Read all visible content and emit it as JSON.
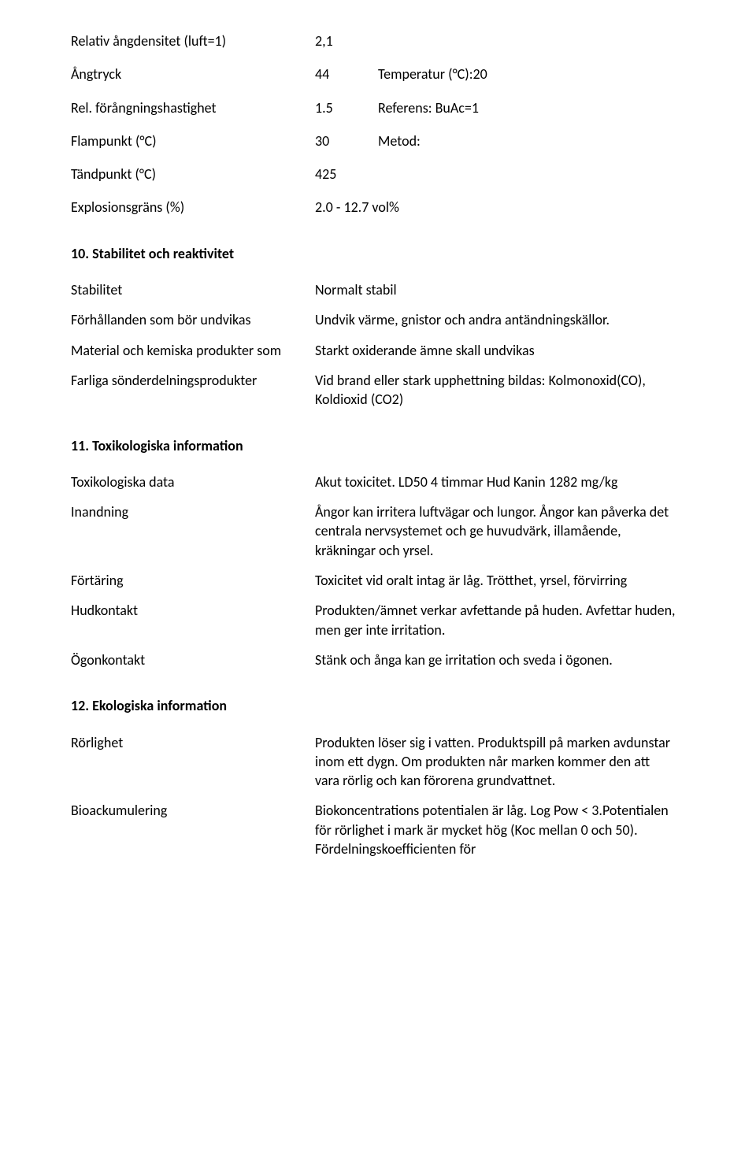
{
  "phys": {
    "density_label": "Relativ ångdensitet (luft=1)",
    "density_val": "2,1",
    "vapor_label": "Ångtryck",
    "vapor_val": "44",
    "vapor_extra": "Temperatur (°C):20",
    "evap_label": "Rel. förångningshastighet",
    "evap_val": "1.5",
    "evap_extra": " Referens: BuAc=1",
    "flash_label": "Flampunkt (°C)",
    "flash_val": "30",
    "flash_extra": "Metod:",
    "ignition_label": "Tändpunkt (°C)",
    "ignition_val": "425",
    "explosion_label": "Explosionsgräns (%)",
    "explosion_val": "2.0 - 12.7 vol%"
  },
  "s10": {
    "heading": "10. Stabilitet och reaktivitet",
    "r1_l": "Stabilitet",
    "r1_r": "Normalt stabil",
    "r2_l": "Förhållanden som bör undvikas",
    "r2_r": "Undvik värme, gnistor och andra antändningskällor.",
    "r3_l": "Material och kemiska produkter som",
    "r3_r": "Starkt oxiderande ämne skall  undvikas",
    "r4_l": "Farliga sönderdelningsprodukter",
    "r4_r": "Vid brand eller stark upphettning bildas: Kolmonoxid(CO), Koldioxid (CO2)"
  },
  "s11": {
    "heading": "11. Toxikologiska information",
    "r1_l": "Toxikologiska data",
    "r1_r": "Akut toxicitet. LD50 4 timmar Hud Kanin 1282 mg/kg",
    "r2_l": "Inandning",
    "r2_r": "Ångor kan irritera luftvägar och lungor. Ångor kan påverka det centrala nervsystemet och ge huvudvärk, illamående, kräkningar och yrsel.",
    "r3_l": "Förtäring",
    "r3_r": "Toxicitet vid oralt intag är låg. Trötthet, yrsel, förvirring",
    "r4_l": "Hudkontakt",
    "r4_r": "Produkten/ämnet verkar avfettande på huden. Avfettar huden, men ger inte irritation.",
    "r5_l": "Ögonkontakt",
    "r5_r": "Stänk och ånga kan ge irritation och sveda i ögonen."
  },
  "s12": {
    "heading": "12. Ekologiska information",
    "r1_l": "Rörlighet",
    "r1_r": "Produkten löser sig i vatten. Produktspill på marken avdunstar inom ett dygn. Om produkten når marken kommer den att vara rörlig och kan förorena grundvattnet.",
    "r2_l": "Bioackumulering",
    "r2_r": "Biokoncentrations potentialen är låg. Log Pow < 3.Potentialen för rörlighet i mark är mycket hög (Koc mellan 0 och 50). Fördelningskoefficienten för"
  }
}
